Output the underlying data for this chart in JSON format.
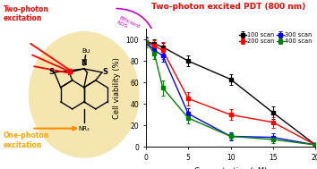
{
  "title": "Two-photon excited PDT (800 nm)",
  "title_color": "#ff0000",
  "xlabel": "Concentration (μM)",
  "ylabel": "Cell viability (%)",
  "xlim": [
    0,
    20
  ],
  "ylim": [
    0,
    110
  ],
  "xticks": [
    0,
    5,
    10,
    15,
    20
  ],
  "yticks": [
    0,
    20,
    40,
    60,
    80,
    100
  ],
  "x_data": [
    0,
    1,
    2,
    5,
    10,
    15,
    20
  ],
  "series": [
    {
      "label": "100 scan",
      "color": "#000000",
      "y": [
        98,
        96,
        93,
        80,
        63,
        32,
        2
      ],
      "yerr": [
        4,
        4,
        4,
        5,
        5,
        6,
        2
      ]
    },
    {
      "label": "200 scan",
      "color": "#ff0000",
      "y": [
        98,
        94,
        90,
        45,
        30,
        23,
        2
      ],
      "yerr": [
        4,
        5,
        8,
        6,
        5,
        5,
        2
      ]
    },
    {
      "label": "300 scan",
      "color": "#0000ff",
      "y": [
        98,
        90,
        85,
        31,
        10,
        9,
        2
      ],
      "yerr": [
        4,
        5,
        6,
        5,
        4,
        4,
        2
      ]
    },
    {
      "label": "400 scan",
      "color": "#008000",
      "y": [
        98,
        87,
        55,
        27,
        10,
        7,
        2
      ],
      "yerr": [
        5,
        5,
        7,
        5,
        3,
        3,
        2
      ]
    }
  ],
  "two_photon_color": "#ff0000",
  "one_photon_color": "#ffa500",
  "efficient_ros_color": "#cc00cc",
  "ellipse_color": "#f5e6b0"
}
